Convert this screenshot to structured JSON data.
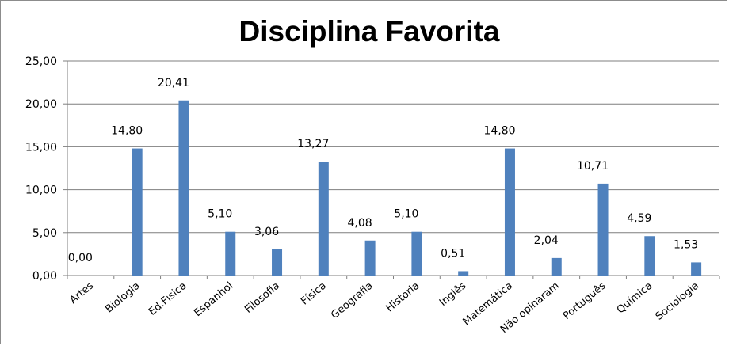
{
  "chart_data": {
    "type": "bar",
    "title": "Disciplina Favorita",
    "xlabel": "",
    "ylabel": "",
    "categories": [
      "Artes",
      "Biologia",
      "Ed.Física",
      "Espanhol",
      "Filosofia",
      "Física",
      "Geografia",
      "História",
      "Inglês",
      "Matemática",
      "Não opinaram",
      "Português",
      "Química",
      "Sociologia"
    ],
    "values": [
      0.0,
      14.8,
      20.41,
      5.1,
      3.06,
      13.27,
      4.08,
      5.1,
      0.51,
      14.8,
      2.04,
      10.71,
      4.59,
      1.53
    ],
    "data_labels": [
      "0,00",
      "14,80",
      "20,41",
      "5,10",
      "3,06",
      "13,27",
      "4,08",
      "5,10",
      "0,51",
      "14,80",
      "2,04",
      "10,71",
      "4,59",
      "1,53"
    ],
    "y_ticks": [
      0,
      5,
      10,
      15,
      20,
      25
    ],
    "y_tick_labels": [
      "0,00",
      "5,00",
      "10,00",
      "15,00",
      "20,00",
      "25,00"
    ],
    "ylim": [
      0,
      25
    ],
    "grid": "horizontal",
    "legend": "none",
    "bar_color": "#4f81bd",
    "gridline_color": "#7f7f7f"
  }
}
